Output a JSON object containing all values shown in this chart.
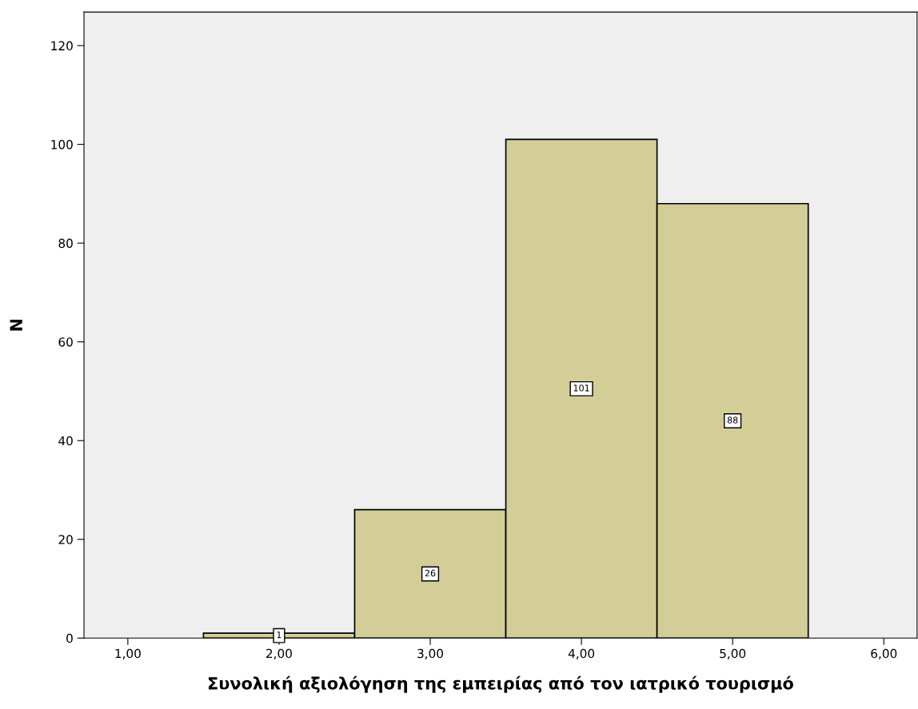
{
  "chart_data": {
    "type": "histogram",
    "xlabel": "Συνολική αξιολόγηση της εμπειρίας από τον ιατρικό τουρισμό",
    "ylabel": "N",
    "bins": [
      1.5,
      2.5,
      3.5,
      4.5,
      5.5
    ],
    "values": [
      1,
      26,
      101,
      88
    ],
    "color": "#d3ce97",
    "data_labels": true,
    "xlim": [
      0.71,
      6.22
    ],
    "ylim": [
      0,
      126.8
    ],
    "xticks": [
      {
        "value": 1,
        "label": "1,00"
      },
      {
        "value": 2,
        "label": "2,00"
      },
      {
        "value": 3,
        "label": "3,00"
      },
      {
        "value": 4,
        "label": "4,00"
      },
      {
        "value": 5,
        "label": "5,00"
      },
      {
        "value": 6,
        "label": "6,00"
      }
    ],
    "yticks": [
      0,
      20,
      40,
      60,
      80,
      100,
      120
    ],
    "grid": false
  }
}
